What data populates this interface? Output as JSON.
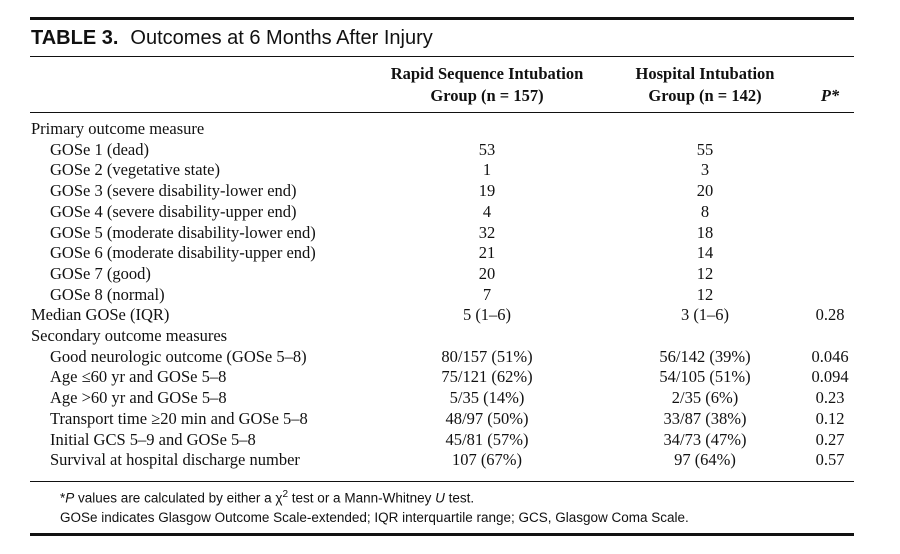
{
  "title": {
    "label": "TABLE 3.",
    "text": "Outcomes at 6 Months After Injury"
  },
  "columns": {
    "rsi": {
      "line1": "Rapid Sequence Intubation",
      "line2": "Group (n = 157)"
    },
    "hi": {
      "line1": "Hospital Intubation",
      "line2": "Group (n = 142)"
    },
    "p": "P*"
  },
  "rows": [
    {
      "label": "Primary outcome measure",
      "rsi": "",
      "hi": "",
      "p": ""
    },
    {
      "label": "GOSe 1 (dead)",
      "rsi": "53",
      "hi": "55",
      "p": ""
    },
    {
      "label": "GOSe 2 (vegetative state)",
      "rsi": "1",
      "hi": "3",
      "p": ""
    },
    {
      "label": "GOSe 3 (severe disability-lower end)",
      "rsi": "19",
      "hi": "20",
      "p": ""
    },
    {
      "label": "GOSe 4 (severe disability-upper end)",
      "rsi": "4",
      "hi": "8",
      "p": ""
    },
    {
      "label": "GOSe 5 (moderate disability-lower end)",
      "rsi": "32",
      "hi": "18",
      "p": ""
    },
    {
      "label": "GOSe 6 (moderate disability-upper end)",
      "rsi": "21",
      "hi": "14",
      "p": ""
    },
    {
      "label": "GOSe 7 (good)",
      "rsi": "20",
      "hi": "12",
      "p": ""
    },
    {
      "label": "GOSe 8 (normal)",
      "rsi": "7",
      "hi": "12",
      "p": ""
    },
    {
      "label": "Median GOSe (IQR)",
      "rsi": "5 (1–6)",
      "hi": "3 (1–6)",
      "p": "0.28"
    },
    {
      "label": "Secondary outcome measures",
      "rsi": "",
      "hi": "",
      "p": ""
    },
    {
      "label": "Good neurologic outcome (GOSe 5–8)",
      "rsi": "80/157 (51%)",
      "hi": "56/142 (39%)",
      "p": "0.046"
    },
    {
      "label": "Age ≤60 yr and GOSe 5–8",
      "rsi": "75/121 (62%)",
      "hi": "54/105 (51%)",
      "p": "0.094"
    },
    {
      "label": "Age >60 yr and GOSe 5–8",
      "rsi": "5/35 (14%)",
      "hi": "2/35 (6%)",
      "p": "0.23"
    },
    {
      "label": "Transport time ≥20 min and GOSe 5–8",
      "rsi": "48/97 (50%)",
      "hi": "33/87 (38%)",
      "p": "0.12"
    },
    {
      "label": "Initial GCS 5–9 and GOSe 5–8",
      "rsi": "45/81 (57%)",
      "hi": "34/73 (47%)",
      "p": "0.27"
    },
    {
      "label": "Survival at hospital discharge number",
      "rsi": "107 (67%)",
      "hi": "97 (64%)",
      "p": "0.57"
    }
  ],
  "footnotes": {
    "line1_prefix": "*",
    "line1_p": "P",
    "line1_mid": " values are calculated by either a χ",
    "line1_sup": "2",
    "line1_tail_a": " test or a Mann-Whitney ",
    "line1_u": "U",
    "line1_tail_b": " test.",
    "line2": "GOSe indicates Glasgow Outcome Scale-extended; IQR interquartile range; GCS, Glasgow Coma Scale."
  }
}
